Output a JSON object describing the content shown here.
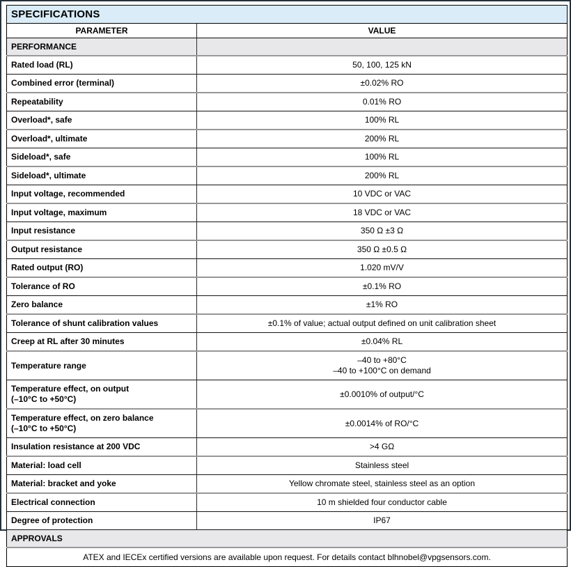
{
  "page": {
    "title": "SPECIFICATIONS"
  },
  "table": {
    "columns": [
      "PARAMETER",
      "VALUE"
    ],
    "performance": {
      "header": "PERFORMANCE",
      "rows": [
        {
          "parameter": "Rated load (RL)",
          "value": "50, 100, 125 kN"
        },
        {
          "parameter": "Combined error (terminal)",
          "value": "±0.02% RO"
        },
        {
          "parameter": "Repeatability",
          "value": "0.01% RO"
        },
        {
          "parameter": "Overload*, safe",
          "value": "100% RL"
        },
        {
          "parameter": "Overload*, ultimate",
          "value": "200% RL"
        },
        {
          "parameter": "Sideload*, safe",
          "value": "100% RL"
        },
        {
          "parameter": "Sideload*, ultimate",
          "value": "200% RL"
        },
        {
          "parameter": "Input voltage, recommended",
          "value": "10 VDC or VAC"
        },
        {
          "parameter": "Input voltage, maximum",
          "value": "18 VDC or VAC"
        },
        {
          "parameter": "Input resistance",
          "value": "350 Ω ±3 Ω"
        },
        {
          "parameter": "Output resistance",
          "value": "350 Ω ±0.5 Ω"
        },
        {
          "parameter": "Rated output (RO)",
          "value": "1.020 mV/V"
        },
        {
          "parameter": "Tolerance of RO",
          "value": "±0.1% RO"
        },
        {
          "parameter": "Zero balance",
          "value": "±1% RO"
        },
        {
          "parameter": "Tolerance of shunt calibration values",
          "value": "±0.1% of value; actual output defined on unit calibration sheet"
        },
        {
          "parameter": "Creep at RL after 30 minutes",
          "value": "±0.04% RL"
        },
        {
          "parameter": "Temperature range",
          "value_lines": [
            "–40 to +80°C",
            "–40 to +100°C on demand"
          ]
        },
        {
          "parameter_lines": [
            "Temperature effect, on output",
            "(–10°C to +50°C)"
          ],
          "value": "±0.0010% of output/°C"
        },
        {
          "parameter_lines": [
            "Temperature effect, on zero balance",
            "(–10°C to +50°C)"
          ],
          "value": "±0.0014% of RO/°C"
        },
        {
          "parameter": "Insulation resistance at 200 VDC",
          "value": ">4 GΩ"
        },
        {
          "parameter": "Material: load cell",
          "value": "Stainless steel"
        },
        {
          "parameter": "Material: bracket and yoke",
          "value": "Yellow chromate steel, stainless steel as an option"
        },
        {
          "parameter": "Electrical connection",
          "value": "10 m shielded four conductor cable"
        },
        {
          "parameter": "Degree of protection",
          "value": "IP67"
        }
      ]
    },
    "approvals": {
      "header": "APPROVALS",
      "note": "ATEX and IECEx certified versions are available upon request. For details contact blhnobel@vpgsensors.com."
    }
  },
  "colors": {
    "title_bg": "#d9ecf8",
    "section_bg": "#e8e8ea",
    "border_dark": "#141414",
    "border_gray": "#969696",
    "outer_border": "#24313a"
  }
}
